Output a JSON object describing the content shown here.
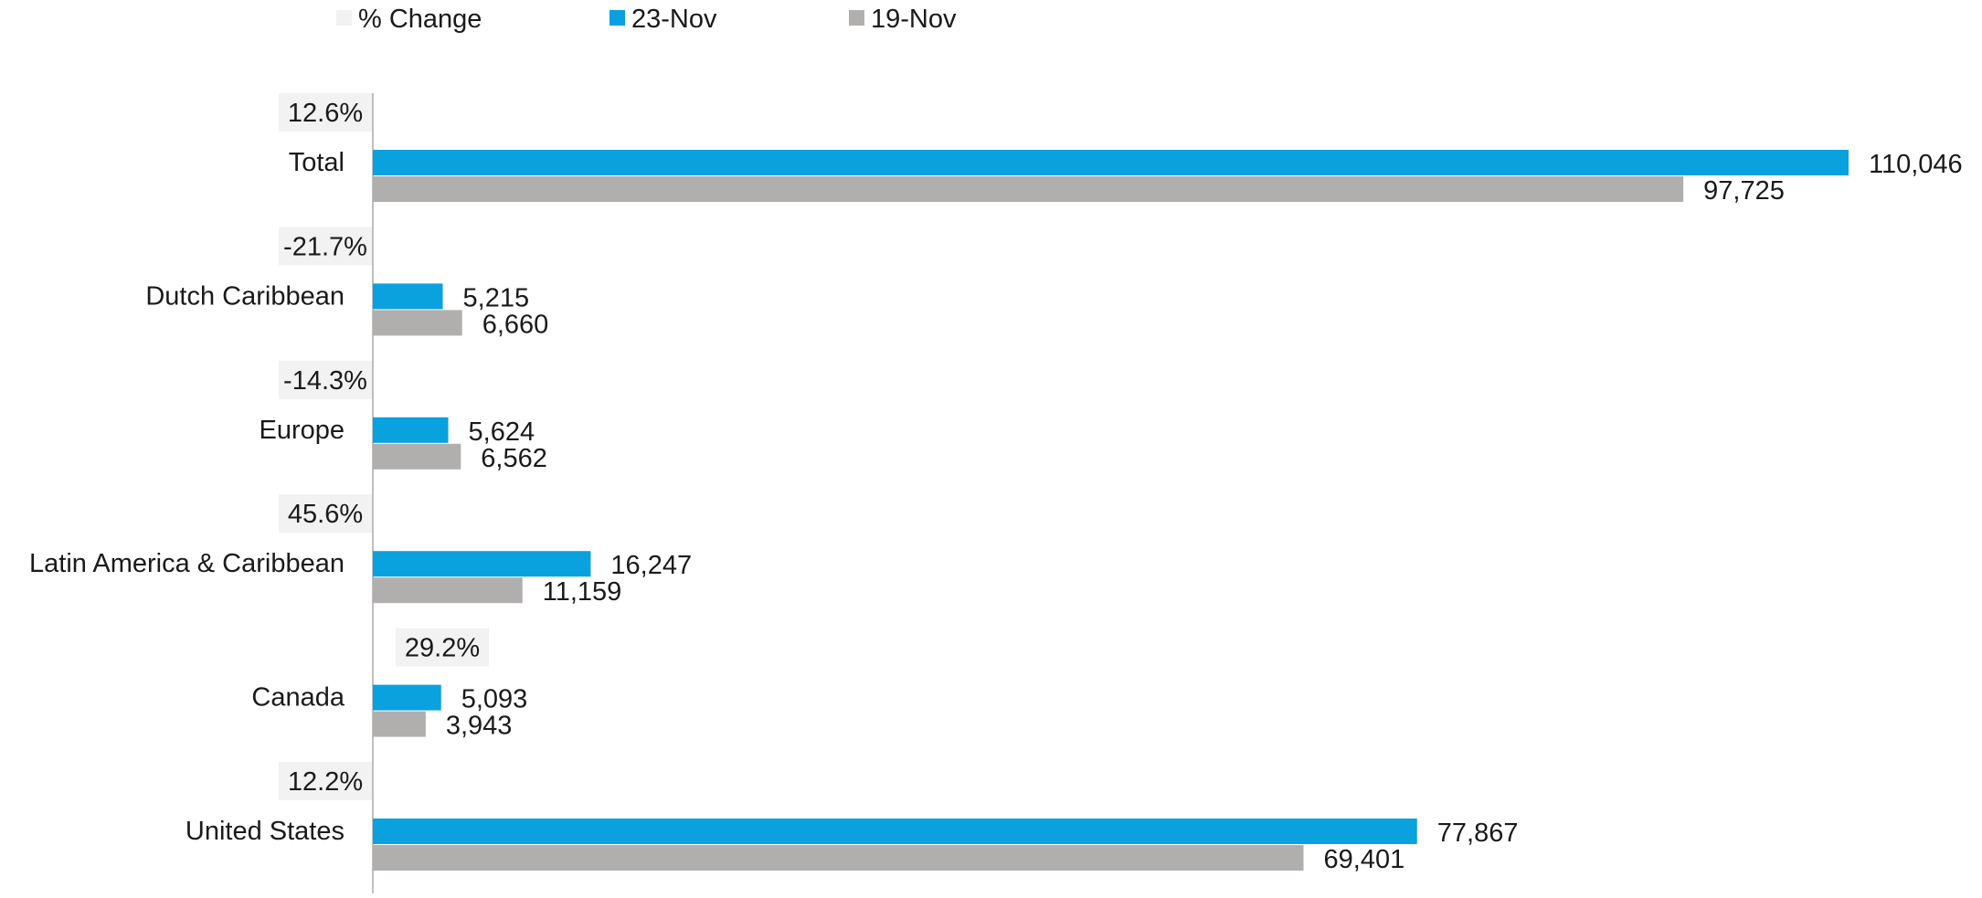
{
  "chart_data": {
    "type": "bar",
    "orientation": "horizontal",
    "grid": false,
    "legend_position": "top-left",
    "xlim": [
      0,
      110046
    ],
    "legend": [
      {
        "label": "% Change",
        "color": "#f2f2f2"
      },
      {
        "label": "23-Nov",
        "color": "#0aa1df"
      },
      {
        "label": "19-Nov",
        "color": "#b1aeae"
      }
    ],
    "categories": [
      "Total",
      "Dutch Caribbean",
      "Europe",
      "Latin America & Caribbean",
      "Canada",
      "United States"
    ],
    "series": [
      {
        "name": "23-Nov",
        "color": "#0aa1df",
        "values": [
          110046,
          5215,
          5624,
          16247,
          5093,
          77867
        ]
      },
      {
        "name": "19-Nov",
        "color": "#b1aeae",
        "values": [
          97725,
          6660,
          6562,
          11159,
          3943,
          69401
        ]
      }
    ],
    "value_labels": {
      "23-Nov": [
        "110,046",
        "5,215",
        "5,624",
        "16,247",
        "5,093",
        "77,867"
      ],
      "19-Nov": [
        "97,725",
        "6,660",
        "6,562",
        "11,159",
        "3,943",
        "69,401"
      ]
    },
    "pct_change": [
      "12.6%",
      "-21.7%",
      "-14.3%",
      "45.6%",
      "29.2%",
      "12.2%"
    ]
  }
}
